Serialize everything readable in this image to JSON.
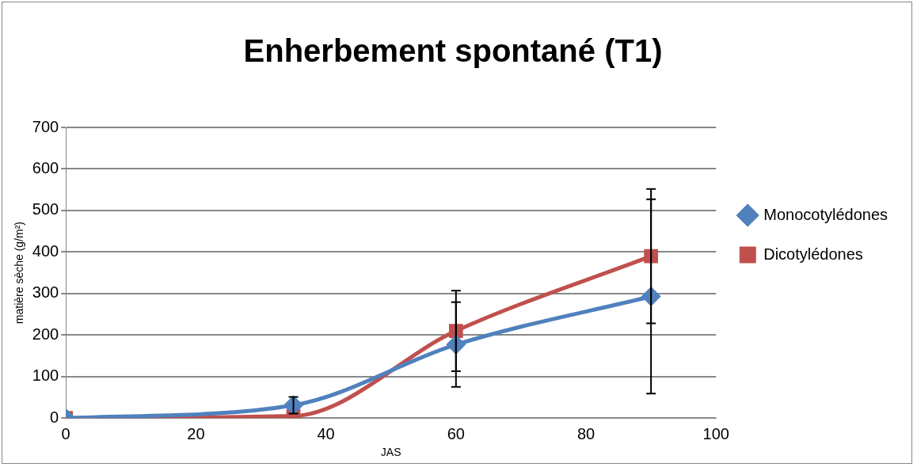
{
  "chart_data": {
    "type": "line",
    "title": "Enherbement spontané (T1)",
    "xlabel": "JAS",
    "ylabel": "matière sèche (g/m²)",
    "x": [
      0,
      35,
      60,
      90
    ],
    "series": [
      {
        "name": "Monocotylédones",
        "color": "#4f81bd",
        "marker": "diamond",
        "values": [
          0,
          31,
          177,
          293
        ],
        "errors": [
          null,
          20,
          102,
          234
        ]
      },
      {
        "name": "Dicotylédones",
        "color": "#c0504d",
        "marker": "square",
        "values": [
          0,
          5,
          210,
          390
        ],
        "errors": [
          null,
          null,
          97,
          162
        ]
      }
    ],
    "xlim": [
      0,
      100
    ],
    "xticks": [
      0,
      20,
      40,
      60,
      80,
      100
    ],
    "ylim": [
      0,
      700
    ],
    "yticks": [
      0,
      100,
      200,
      300,
      400,
      500,
      600,
      700
    ],
    "grid": "y",
    "legend": "right"
  }
}
